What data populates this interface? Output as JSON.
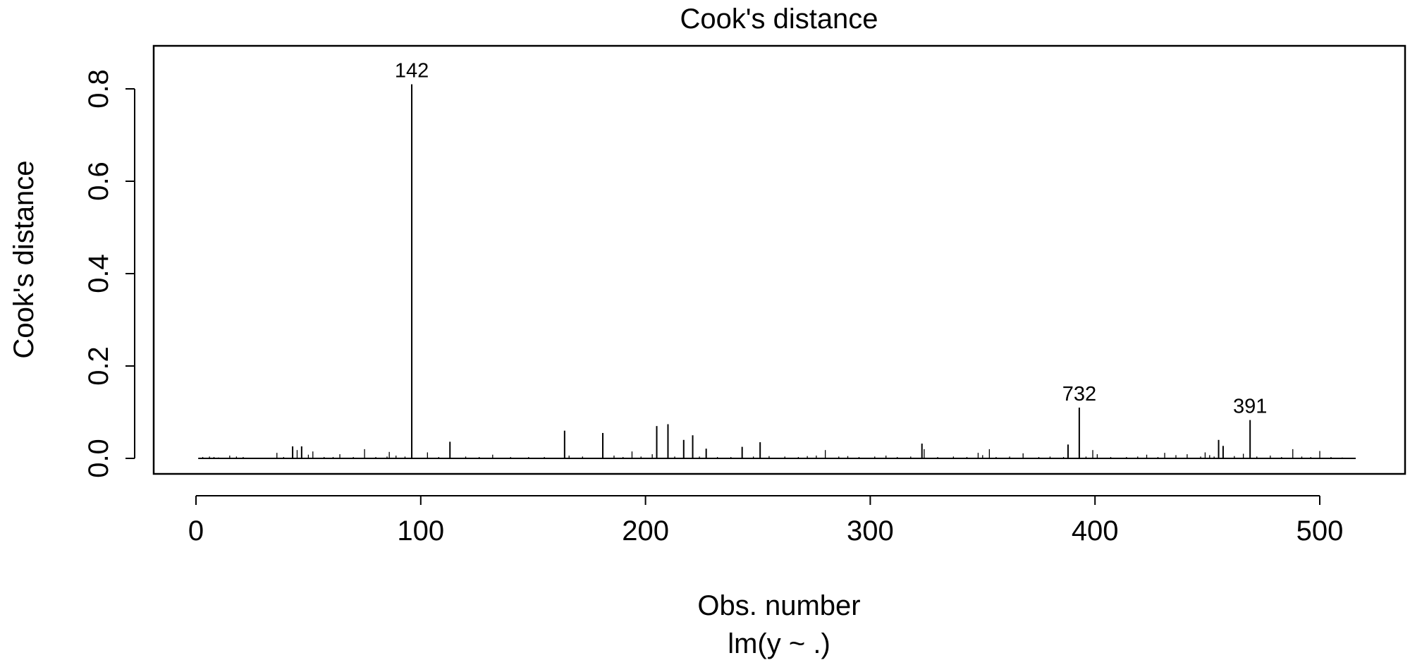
{
  "chart_data": {
    "type": "bar",
    "title": "Cook's distance",
    "xlabel": "Obs. number",
    "subtitle": "lm(y ~ .)",
    "ylabel": "Cook's distance",
    "xlim": [
      0,
      520
    ],
    "ylim": [
      -0.04,
      0.9
    ],
    "xticks": [
      0,
      100,
      200,
      300,
      400,
      500
    ],
    "yticks": [
      0.0,
      0.2,
      0.4,
      0.6,
      0.8
    ],
    "n_obs": 516,
    "spikes": [
      [
        3,
        0.003
      ],
      [
        6,
        0.004
      ],
      [
        8,
        0.003
      ],
      [
        10,
        0.002
      ],
      [
        15,
        0.006
      ],
      [
        18,
        0.004
      ],
      [
        21,
        0.003
      ],
      [
        36,
        0.012
      ],
      [
        39,
        0.003
      ],
      [
        43,
        0.026
      ],
      [
        45,
        0.018
      ],
      [
        47,
        0.026
      ],
      [
        50,
        0.008
      ],
      [
        52,
        0.015
      ],
      [
        57,
        0.003
      ],
      [
        61,
        0.003
      ],
      [
        64,
        0.009
      ],
      [
        70,
        0.003
      ],
      [
        75,
        0.02
      ],
      [
        80,
        0.003
      ],
      [
        85,
        0.004
      ],
      [
        86,
        0.014
      ],
      [
        89,
        0.006
      ],
      [
        93,
        0.004
      ],
      [
        96,
        0.81
      ],
      [
        103,
        0.013
      ],
      [
        108,
        0.003
      ],
      [
        113,
        0.036
      ],
      [
        120,
        0.004
      ],
      [
        126,
        0.003
      ],
      [
        132,
        0.008
      ],
      [
        140,
        0.003
      ],
      [
        148,
        0.003
      ],
      [
        155,
        0.003
      ],
      [
        164,
        0.06
      ],
      [
        166,
        0.006
      ],
      [
        172,
        0.004
      ],
      [
        181,
        0.055
      ],
      [
        186,
        0.006
      ],
      [
        190,
        0.003
      ],
      [
        194,
        0.015
      ],
      [
        198,
        0.004
      ],
      [
        203,
        0.009
      ],
      [
        205,
        0.07
      ],
      [
        210,
        0.074
      ],
      [
        213,
        0.004
      ],
      [
        217,
        0.04
      ],
      [
        221,
        0.05
      ],
      [
        224,
        0.004
      ],
      [
        227,
        0.021
      ],
      [
        232,
        0.003
      ],
      [
        238,
        0.003
      ],
      [
        243,
        0.025
      ],
      [
        248,
        0.004
      ],
      [
        251,
        0.035
      ],
      [
        255,
        0.005
      ],
      [
        262,
        0.004
      ],
      [
        268,
        0.003
      ],
      [
        272,
        0.005
      ],
      [
        276,
        0.006
      ],
      [
        280,
        0.018
      ],
      [
        286,
        0.004
      ],
      [
        290,
        0.005
      ],
      [
        295,
        0.003
      ],
      [
        302,
        0.004
      ],
      [
        307,
        0.006
      ],
      [
        312,
        0.003
      ],
      [
        318,
        0.004
      ],
      [
        323,
        0.032
      ],
      [
        324,
        0.02
      ],
      [
        330,
        0.003
      ],
      [
        337,
        0.004
      ],
      [
        343,
        0.003
      ],
      [
        348,
        0.012
      ],
      [
        350,
        0.007
      ],
      [
        353,
        0.02
      ],
      [
        356,
        0.003
      ],
      [
        362,
        0.004
      ],
      [
        368,
        0.011
      ],
      [
        375,
        0.003
      ],
      [
        380,
        0.004
      ],
      [
        386,
        0.003
      ],
      [
        388,
        0.03
      ],
      [
        393,
        0.11
      ],
      [
        396,
        0.004
      ],
      [
        399,
        0.018
      ],
      [
        401,
        0.009
      ],
      [
        407,
        0.003
      ],
      [
        414,
        0.003
      ],
      [
        419,
        0.004
      ],
      [
        423,
        0.008
      ],
      [
        428,
        0.003
      ],
      [
        431,
        0.012
      ],
      [
        436,
        0.007
      ],
      [
        441,
        0.009
      ],
      [
        447,
        0.004
      ],
      [
        449,
        0.013
      ],
      [
        451,
        0.007
      ],
      [
        453,
        0.004
      ],
      [
        455,
        0.04
      ],
      [
        457,
        0.027
      ],
      [
        462,
        0.005
      ],
      [
        466,
        0.01
      ],
      [
        469,
        0.083
      ],
      [
        472,
        0.004
      ],
      [
        478,
        0.006
      ],
      [
        483,
        0.003
      ],
      [
        488,
        0.02
      ],
      [
        492,
        0.004
      ],
      [
        496,
        0.003
      ],
      [
        500,
        0.016
      ],
      [
        505,
        0.003
      ],
      [
        510,
        0.002
      ]
    ],
    "labeled_points": [
      {
        "label": "142",
        "x": 96,
        "y": 0.81
      },
      {
        "label": "732",
        "x": 393,
        "y": 0.11
      },
      {
        "label": "391",
        "x": 469,
        "y": 0.083
      }
    ]
  }
}
